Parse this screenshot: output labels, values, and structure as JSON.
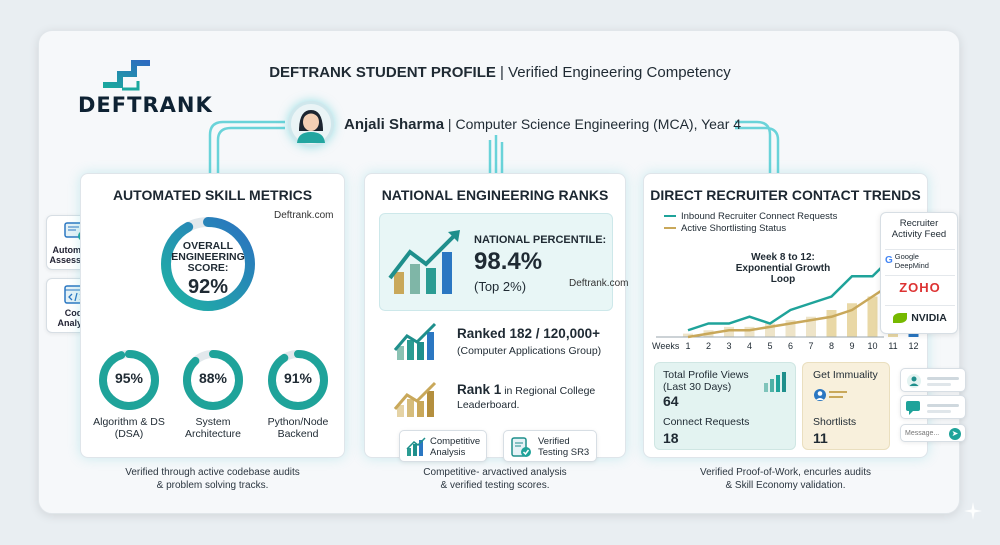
{
  "brand": {
    "name": "DEFTRANK"
  },
  "header": {
    "title_bold": "DEFTRANK STUDENT PROFILE",
    "title_rest": " | Verified Engineering Competency"
  },
  "profile": {
    "name": "Anjali Sharma",
    "details": " | Computer Science Engineering (MCA), Year 4"
  },
  "skills": {
    "title": "AUTOMATED SKILL METRICS",
    "watermark": "Deftrank.com",
    "overall_label_1": "OVERALL",
    "overall_label_2": "ENGINEERING",
    "overall_label_3": "SCORE:",
    "overall_value": "92%",
    "overall_fraction": 0.92,
    "rings": [
      {
        "value": "95%",
        "fraction": 0.95,
        "label_1": "Algorithm & DS",
        "label_2": "(DSA)"
      },
      {
        "value": "88%",
        "fraction": 0.88,
        "label_1": "System",
        "label_2": "Architecture"
      },
      {
        "value": "91%",
        "fraction": 0.91,
        "label_1": "Python/Node",
        "label_2": "Backend"
      }
    ],
    "caption_1": "Verified through active codebase audits",
    "caption_2": "& problem solving tracks.",
    "side_chips": [
      {
        "label_1": "Automated",
        "label_2": "Assessment",
        "icon": "monitor-check-icon"
      },
      {
        "label_1": "Code",
        "label_2": "Analysis",
        "icon": "code-window-icon"
      }
    ]
  },
  "ranks": {
    "title": "NATIONAL ENGINEERING RANKS",
    "percentile_label": "NATIONAL PERCENTILE:",
    "percentile_value": "98.4%",
    "percentile_top": "(Top 2%)",
    "watermark": "Deftrank.com",
    "ranked_main": "Ranked 182 / 120,000+",
    "ranked_sub": "(Computer Applications Group)",
    "rank1_bold": "Rank 1",
    "rank1_rest": " in Regional College",
    "rank1_line2": "Leaderboard.",
    "chip_1_line1": "Competitive",
    "chip_1_line2": "Analysis",
    "chip_2_line1": "Verified",
    "chip_2_line2": "Testing SR3",
    "caption_1": "Competitive- arvactived analysis",
    "caption_2": "& verified testing scores."
  },
  "recruiter": {
    "title": "DIRECT RECRUITER CONTACT TRENDS",
    "legend_1": "Inbound Recruiter Connect Requests",
    "legend_2": "Active Shortlisting Status",
    "annotation_1": "Week 8 to 12:",
    "annotation_2": "Exponential Growth",
    "annotation_3": "Loop",
    "x_title": "Weeks",
    "stats": {
      "views_label_1": "Total Profile Views",
      "views_label_2": "(Last 30 Days)",
      "views_value": "64",
      "connect_label": "Connect Requests",
      "connect_value": "18",
      "immu_label": "Get Immuality",
      "short_label": "Shortlists",
      "short_value": "11"
    },
    "feed": {
      "title_1": "Recruiter",
      "title_2": "Activity Feed",
      "companies": [
        "Google DeepMind",
        "ZOHO",
        "NVIDIA"
      ]
    },
    "message_placeholder": "Message...",
    "caption_1": "Verified Proof-of-Work, encurles audits",
    "caption_2": "& Skill Economy validation."
  },
  "colors": {
    "teal": "#1fa39a",
    "blue": "#2b77c2",
    "gold": "#c9a85a",
    "navy": "#0e2233"
  },
  "chart_data": {
    "type": "bar",
    "categories": [
      "1",
      "2",
      "3",
      "4",
      "5",
      "6",
      "7",
      "8",
      "9",
      "10",
      "11",
      "12"
    ],
    "xlabel": "Weeks",
    "series": [
      {
        "name": "Inbound Recruiter Connect Requests",
        "type": "line",
        "values": [
          1,
          2,
          2,
          3,
          2,
          4,
          5,
          6,
          9,
          9,
          12,
          16
        ]
      },
      {
        "name": "Active Shortlisting Status",
        "type": "line",
        "values": [
          0,
          0.5,
          1,
          1,
          1.5,
          2,
          2.5,
          3,
          4,
          6,
          8,
          10
        ]
      },
      {
        "name": "bars",
        "type": "bar",
        "values": [
          0.5,
          1,
          1.5,
          1.5,
          2,
          2.5,
          3,
          4,
          5,
          6,
          8,
          10
        ]
      }
    ]
  }
}
